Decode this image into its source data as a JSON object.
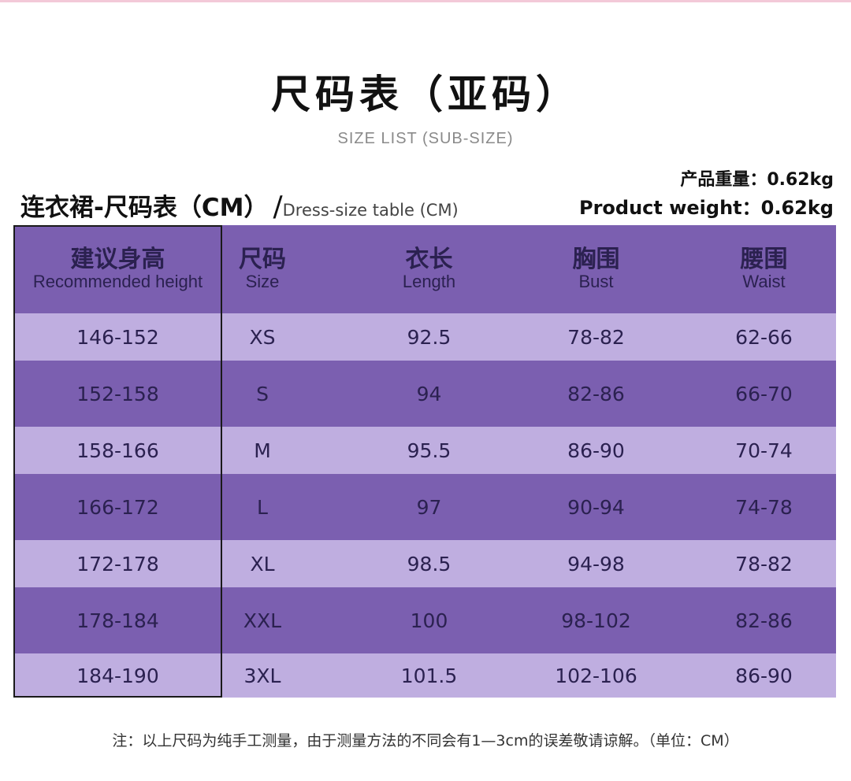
{
  "title": "尺码表（亚码）",
  "subtitle": "SIZE LIST (SUB-SIZE)",
  "weight": {
    "cn": "产品重量：0.62kg",
    "en": "Product weight：0.62kg"
  },
  "table_title": {
    "cn": "连衣裙-尺码表（CM）",
    "slash": "/",
    "en": "Dress-size table (CM)"
  },
  "header": [
    {
      "cn": "建议身高",
      "en": "Recommended height"
    },
    {
      "cn": "尺码",
      "en": "Size"
    },
    {
      "cn": "衣长",
      "en": "Length"
    },
    {
      "cn": "胸围",
      "en": "Bust"
    },
    {
      "cn": "腰围",
      "en": "Waist"
    }
  ],
  "rows": [
    [
      "146-152",
      "XS",
      "92.5",
      "78-82",
      "62-66"
    ],
    [
      "152-158",
      "S",
      "94",
      "82-86",
      "66-70"
    ],
    [
      "158-166",
      "M",
      "95.5",
      "86-90",
      "70-74"
    ],
    [
      "166-172",
      "L",
      "97",
      "90-94",
      "74-78"
    ],
    [
      "172-178",
      "XL",
      "98.5",
      "94-98",
      "78-82"
    ],
    [
      "178-184",
      "XXL",
      "100",
      "98-102",
      "82-86"
    ],
    [
      "184-190",
      "3XL",
      "101.5",
      "102-106",
      "86-90"
    ]
  ],
  "note": "注：以上尺码为纯手工测量，由于测量方法的不同会有1—3cm的误差敬请谅解。（单位：CM）",
  "colors": {
    "header_bg": "#7b5fb0",
    "row_light": "#bfaee0",
    "row_dark": "#7b5fb0",
    "text": "#2b2150"
  }
}
